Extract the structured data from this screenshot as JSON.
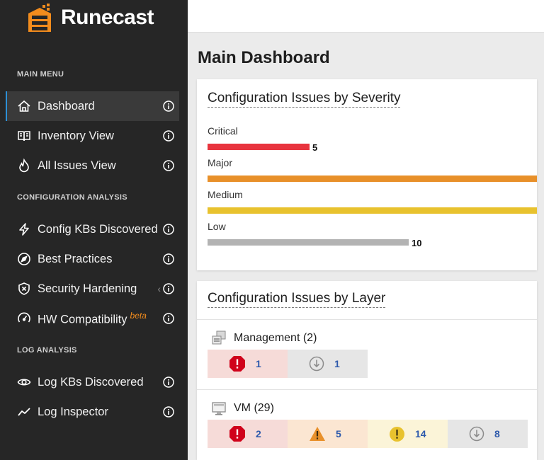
{
  "app": {
    "name": "Runecast"
  },
  "sidebar": {
    "sections": [
      {
        "title": "MAIN MENU"
      },
      {
        "title": "CONFIGURATION ANALYSIS"
      },
      {
        "title": "LOG ANALYSIS"
      }
    ],
    "items": [
      {
        "label": "Dashboard",
        "icon": "home-icon",
        "active": true
      },
      {
        "label": "Inventory View",
        "icon": "book-icon"
      },
      {
        "label": "All Issues View",
        "icon": "flame-icon"
      },
      {
        "label": "Config KBs Discovered",
        "icon": "bolt-icon"
      },
      {
        "label": "Best Practices",
        "icon": "compass-icon"
      },
      {
        "label": "Security Hardening",
        "icon": "shield-icon"
      },
      {
        "label": "HW Compatibility",
        "icon": "gauge-icon",
        "badge": "beta"
      },
      {
        "label": "Log KBs Discovered",
        "icon": "eye-icon"
      },
      {
        "label": "Log Inspector",
        "icon": "trend-icon"
      }
    ]
  },
  "main": {
    "title": "Main Dashboard"
  },
  "severity_card": {
    "title": "Configuration Issues by Severity",
    "rows": [
      {
        "label": "Critical",
        "value": "5",
        "fraction": 0.31,
        "color": "#e8343e"
      },
      {
        "label": "Major",
        "value": "",
        "fraction": 1.0,
        "color": "#e8902a"
      },
      {
        "label": "Medium",
        "value": "",
        "fraction": 1.0,
        "color": "#e8c22e"
      },
      {
        "label": "Low",
        "value": "10",
        "fraction": 0.61,
        "color": "#b3b3b3"
      }
    ]
  },
  "layer_card": {
    "title": "Configuration Issues by Layer",
    "layers": [
      {
        "name": "Management (2)",
        "critical": "1",
        "low": "1"
      },
      {
        "name": "VM (29)",
        "critical": "2",
        "major": "5",
        "medium": "14",
        "low": "8"
      }
    ]
  },
  "colors": {
    "accent": "#2d8fd5",
    "brand": "#f28c1d",
    "sidebar": "#262626"
  }
}
